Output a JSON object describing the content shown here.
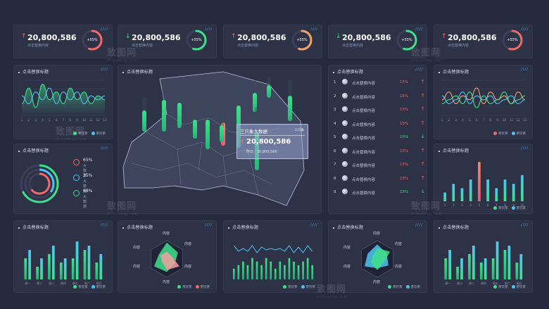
{
  "panel_title": "点击替换标题",
  "marks": "////",
  "stats": [
    {
      "value": "20,800,586",
      "label": "点击替换内容",
      "trend": "up",
      "percent": "+55%"
    },
    {
      "value": "20,800,586",
      "label": "点击替换内容",
      "trend": "down",
      "percent": "+55%"
    },
    {
      "value": "20,800,586",
      "label": "点击替换内容",
      "trend": "up",
      "percent": "+55%"
    },
    {
      "value": "20,800,586",
      "label": "点击替换内容",
      "trend": "down",
      "percent": "+55%"
    },
    {
      "value": "20,800,586",
      "label": "点击替换内容",
      "trend": "up",
      "percent": "+55%"
    }
  ],
  "colors": {
    "bg": "#262a3e",
    "panel": "#2d3247",
    "green": "#3ee08a",
    "cyan": "#4ec3f2",
    "red": "#f06a6a",
    "orange": "#f3a46b"
  },
  "legend": {
    "a": "茶饮茶",
    "b": "茶饮茶"
  },
  "pie_legend": [
    {
      "value": "65%",
      "label": "大数据"
    },
    {
      "value": "35%",
      "label": "大数据"
    },
    {
      "value": "68%",
      "label": "大数据"
    }
  ],
  "tooltip": {
    "title": "三只象大数据",
    "tag": "三只象",
    "value": "20,800,586",
    "prev": "昨日：20,800,586"
  },
  "ranking": [
    {
      "idx": "1",
      "text": "点击替换内容",
      "pct": "15%",
      "dir": "up"
    },
    {
      "idx": "2",
      "text": "点击替换内容",
      "pct": "15%",
      "dir": "up"
    },
    {
      "idx": "3",
      "text": "点击替换内容",
      "pct": "15%",
      "dir": "up"
    },
    {
      "idx": "4",
      "text": "点击替换内容",
      "pct": "15%",
      "dir": "up"
    },
    {
      "idx": "5",
      "text": "点击替换内容",
      "pct": "15%",
      "dir": "down"
    },
    {
      "idx": "6",
      "text": "点击替换内容",
      "pct": "15%",
      "dir": "up"
    },
    {
      "idx": "7",
      "text": "点击替换内容",
      "pct": "15%",
      "dir": "up"
    },
    {
      "idx": "8",
      "text": "点击替换内容",
      "pct": "15%",
      "dir": "up"
    },
    {
      "idx": "9",
      "text": "点击替换内容",
      "pct": "15%",
      "dir": "down"
    }
  ],
  "radar_labels": [
    "内容",
    "内容",
    "内容",
    "内容",
    "内容",
    "内容"
  ],
  "watermark": {
    "text": "致图网",
    "sub": "zhituwang.com"
  },
  "chart_data": [
    {
      "type": "line",
      "x": [
        "1",
        "2",
        "3",
        "4",
        "5",
        "6",
        "7",
        "8",
        "9",
        "10",
        "11",
        "12",
        "13"
      ],
      "series": [
        {
          "values": [
            3,
            7,
            2,
            8,
            4,
            6,
            3,
            7,
            4,
            6,
            3,
            5,
            4
          ]
        },
        {
          "values": [
            5,
            3,
            6,
            4,
            7,
            3,
            6,
            4,
            6,
            3,
            5,
            4,
            5
          ]
        }
      ]
    },
    {
      "type": "line",
      "x": [
        "1",
        "2",
        "3",
        "4",
        "5",
        "6",
        "7",
        "8",
        "9",
        "10",
        "11",
        "12",
        "13"
      ],
      "series": [
        {
          "values": [
            4,
            6,
            3,
            5,
            4,
            7,
            3,
            6,
            4,
            5,
            3,
            6,
            4
          ]
        },
        {
          "values": [
            3,
            4,
            5,
            3,
            6,
            2,
            5,
            3,
            4,
            6,
            3,
            4,
            5
          ]
        },
        {
          "values": [
            5,
            3,
            4,
            6,
            3,
            5,
            4,
            5,
            3,
            4,
            5,
            3,
            4
          ]
        }
      ]
    },
    {
      "type": "bar",
      "categories": [
        "1",
        "2",
        "3",
        "4",
        "5",
        "6",
        "7",
        "8",
        "9",
        "10"
      ],
      "values": [
        2,
        4,
        3,
        5,
        9,
        5,
        3,
        5,
        4,
        6
      ]
    },
    {
      "type": "bar",
      "categories": [
        "周一",
        "周二",
        "周三",
        "周四",
        "周五",
        "周六",
        "周日"
      ],
      "series": [
        {
          "values": [
            5,
            3,
            6,
            4,
            5,
            7,
            4
          ]
        },
        {
          "values": [
            7,
            5,
            8,
            5,
            9,
            8,
            6
          ]
        }
      ]
    },
    {
      "type": "bar",
      "categories": [
        "1",
        "2",
        "3",
        "4",
        "5",
        "6",
        "7",
        "8",
        "9",
        "10",
        "11",
        "12",
        "13",
        "14",
        "15",
        "16",
        "17",
        "18"
      ],
      "values": [
        3,
        4,
        5,
        4,
        6,
        5,
        4,
        6,
        5,
        3,
        5,
        4,
        6,
        5,
        4,
        5,
        6,
        4
      ]
    },
    {
      "type": "bar",
      "categories": [
        "周一",
        "周二",
        "周三",
        "周四",
        "周五",
        "周六",
        "周日"
      ],
      "series": [
        {
          "values": [
            5,
            3,
            6,
            4,
            5,
            7,
            4
          ]
        },
        {
          "values": [
            7,
            5,
            8,
            5,
            9,
            8,
            6
          ]
        }
      ]
    },
    {
      "type": "pie",
      "values": [
        65,
        35,
        68
      ]
    },
    {
      "type": "bar",
      "name": "map-columns",
      "values": [
        5,
        7,
        9,
        3,
        6,
        8,
        4,
        6,
        8,
        5,
        7,
        6
      ]
    }
  ]
}
